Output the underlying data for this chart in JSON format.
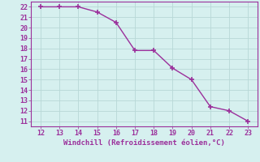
{
  "x": [
    12,
    13,
    14,
    15,
    16,
    17,
    18,
    19,
    20,
    21,
    22,
    23
  ],
  "y": [
    22,
    22,
    22,
    21.5,
    20.5,
    17.8,
    17.8,
    16.1,
    15.0,
    12.4,
    12.0,
    11.0
  ],
  "line_color": "#9b309b",
  "marker": "+",
  "xlabel": "Windchill (Refroidissement éolien,°C)",
  "xlim": [
    11.5,
    23.5
  ],
  "ylim": [
    10.5,
    22.5
  ],
  "xticks": [
    12,
    13,
    14,
    15,
    16,
    17,
    18,
    19,
    20,
    21,
    22,
    23
  ],
  "yticks": [
    11,
    12,
    13,
    14,
    15,
    16,
    17,
    18,
    19,
    20,
    21,
    22
  ],
  "bg_color": "#d6f0ef",
  "grid_color": "#b8d8d6",
  "tick_color": "#9b309b",
  "label_color": "#9b309b",
  "linewidth": 1.0,
  "markersize": 4,
  "tick_fontsize": 6,
  "label_fontsize": 6.5
}
